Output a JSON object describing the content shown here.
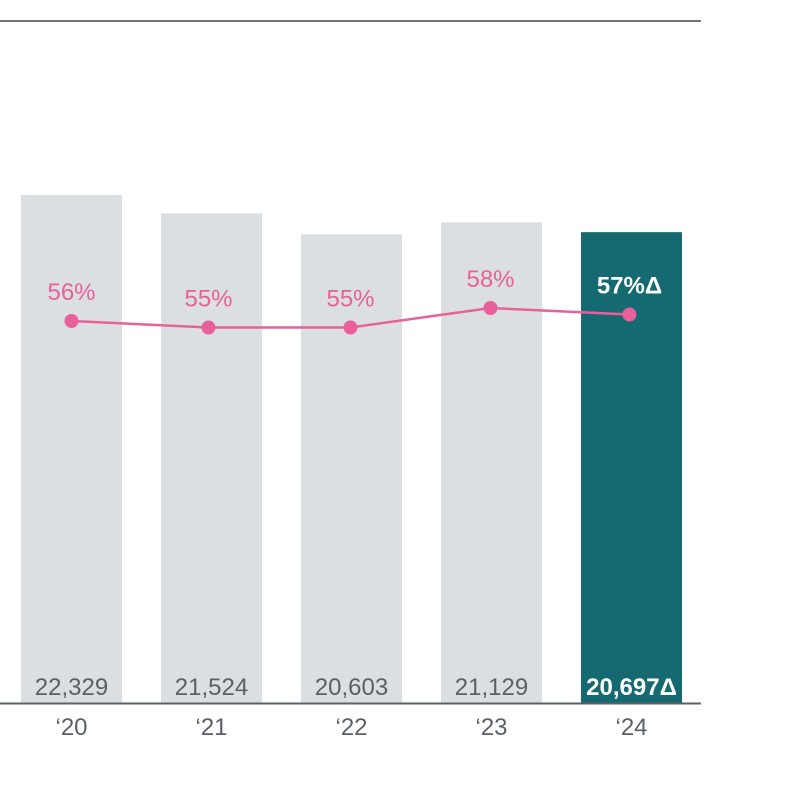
{
  "chart_data": {
    "type": "bar",
    "categories": [
      "‘20",
      "‘21",
      "‘22",
      "‘23",
      "‘24"
    ],
    "values": [
      22329,
      21524,
      20603,
      21129,
      20697
    ],
    "value_labels": [
      "22,329",
      "21,524",
      "20,603",
      "21,129",
      "20,697Δ"
    ],
    "line_series": {
      "type": "line",
      "values": [
        56,
        55,
        55,
        58,
        57
      ],
      "labels": [
        "56%",
        "55%",
        "55%",
        "58%",
        "57%Δ"
      ]
    },
    "ylim": [
      0,
      30000
    ],
    "highlight_index": 4,
    "grid": false,
    "legend": "none",
    "colors": {
      "bar": "#dcdfe1",
      "bar_highlight": "#156a72",
      "line": "#e8609a",
      "bar_label": "#5a6068",
      "highlight_label": "#ffffff",
      "axis": "#5a6068",
      "top_rule": "#222222"
    }
  }
}
